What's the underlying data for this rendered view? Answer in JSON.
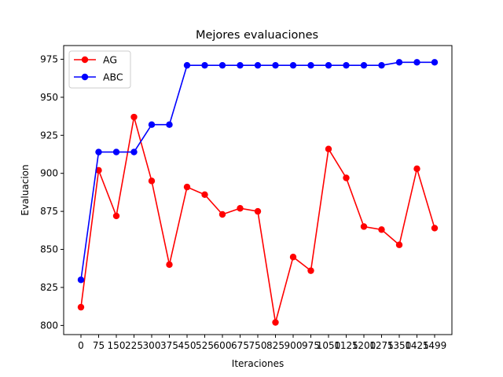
{
  "chart_data": {
    "type": "line",
    "title": "Mejores evaluaciones",
    "xlabel": "Iteraciones",
    "ylabel": "Evaluacion",
    "x": [
      0,
      75,
      150,
      225,
      300,
      375,
      450,
      525,
      600,
      675,
      750,
      825,
      900,
      975,
      1050,
      1125,
      1200,
      1275,
      1350,
      1425,
      1499
    ],
    "x_tick_labels": [
      "0",
      "75",
      "150",
      "225",
      "300",
      "375",
      "450",
      "525",
      "600",
      "675",
      "750",
      "825",
      "900",
      "975",
      "1050",
      "1125",
      "1200",
      "1275",
      "1350",
      "1425",
      "1499"
    ],
    "y_ticks": [
      800,
      825,
      850,
      875,
      900,
      925,
      950,
      975
    ],
    "ylim": [
      794,
      984
    ],
    "grid": false,
    "legend_position": "upper-left",
    "series": [
      {
        "name": "AG",
        "color": "#ff0000",
        "marker": "circle",
        "values": [
          812,
          902,
          872,
          937,
          895,
          840,
          891,
          886,
          873,
          877,
          875,
          802,
          845,
          836,
          916,
          897,
          865,
          863,
          853,
          903,
          864
        ]
      },
      {
        "name": "ABC",
        "color": "#0000ff",
        "marker": "circle",
        "values": [
          830,
          914,
          914,
          914,
          932,
          932,
          971,
          971,
          971,
          971,
          971,
          971,
          971,
          971,
          971,
          971,
          971,
          971,
          973,
          973,
          973
        ]
      }
    ]
  }
}
